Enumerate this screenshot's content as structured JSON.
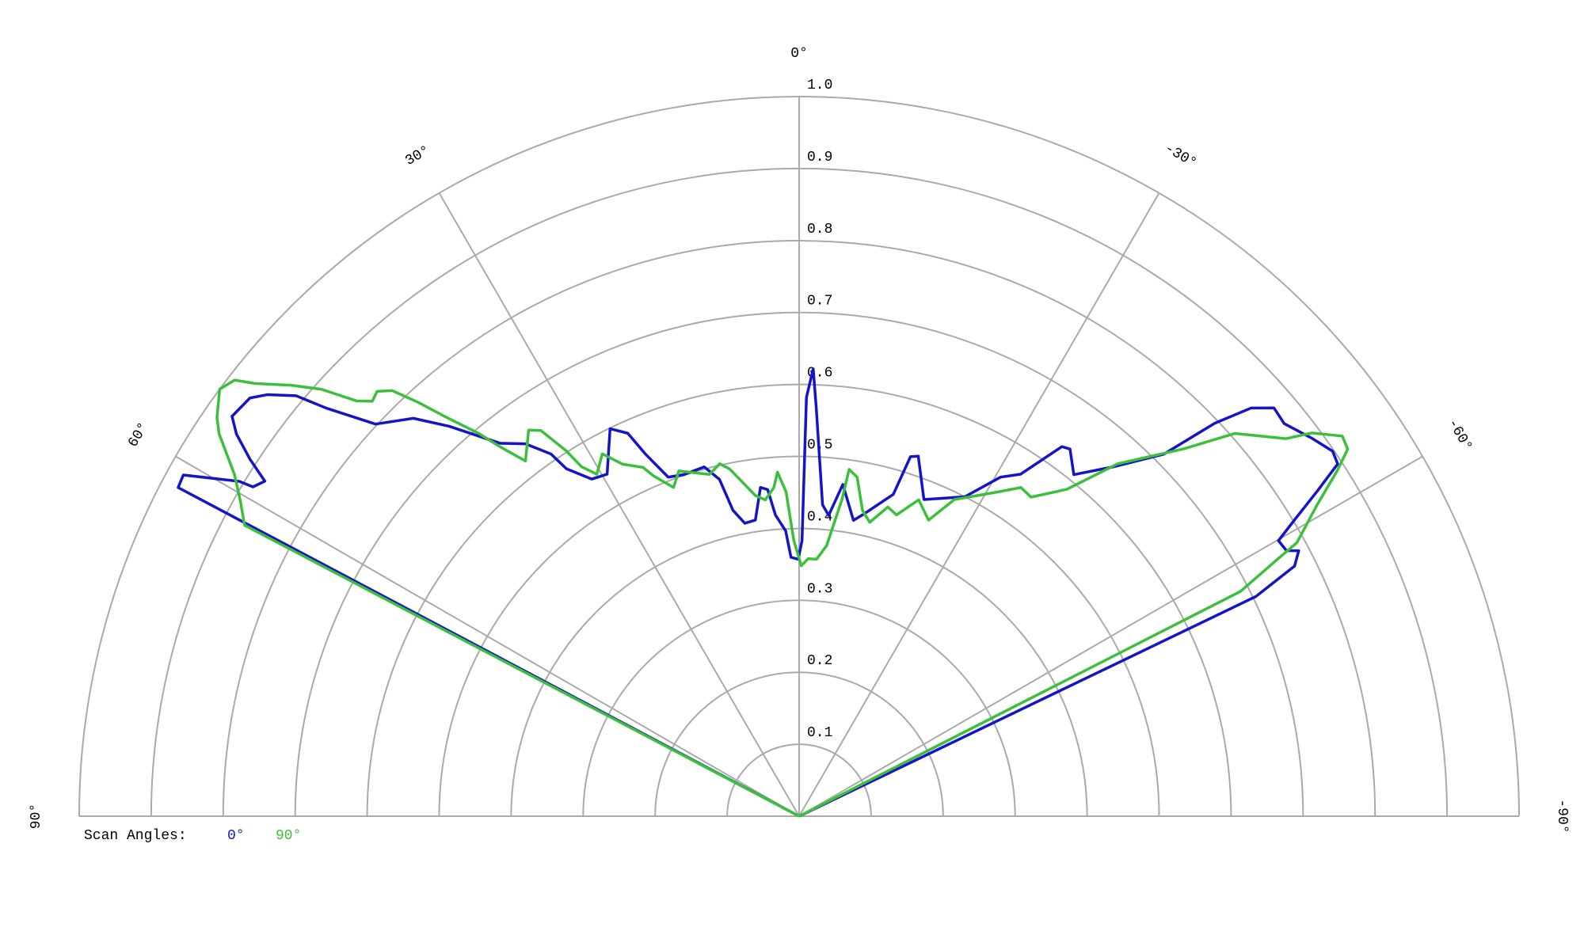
{
  "chart_data": {
    "type": "polar",
    "legend_title": "Scan Angles:",
    "rlim": [
      0,
      1
    ],
    "rticks": [
      0.1,
      0.2,
      0.3,
      0.4,
      0.5,
      0.6,
      0.7,
      0.8,
      0.9,
      {
        "value": 1,
        "label": "1.0"
      }
    ],
    "thetalim": [
      90,
      -90
    ],
    "thetaticks": [
      {
        "value": 90,
        "label": "90°"
      },
      {
        "value": 60,
        "label": "60°"
      },
      {
        "value": 30,
        "label": "30°"
      },
      {
        "value": 0,
        "label": "0°"
      },
      {
        "value": -30,
        "label": "-30°"
      },
      {
        "value": -60,
        "label": "-60°"
      },
      {
        "value": -90,
        "label": "-90°"
      }
    ],
    "grid": true,
    "series": [
      {
        "name": "0°",
        "color": "#1414c8",
        "theta": [
          62,
          62.1,
          61.0,
          59.1,
          58.9,
          57.9,
          56.96,
          55.8,
          54.8,
          52.7,
          51.6,
          50.1,
          49.2,
          47.2,
          44.1,
          41.9,
          38.7,
          36.3,
          34.4,
          33.8,
          31.6,
          29.3,
          26.0,
          24.1,
          23.0,
          21.1,
          18.6,
          15.2,
          13.3,
          12.2,
          10.5,
          8.4,
          6.7,
          5.5,
          4.5,
          2.7,
          1.8,
          0.2,
          -0.6,
          -1.0,
          -1.8,
          -2.4,
          -4.3,
          -5.6,
          -7.5,
          -10.4,
          -11.9,
          -16.3,
          -17.2,
          -18.3,
          -21.5,
          -27.4,
          -30.7,
          -32.9,
          -35.4,
          -36.4,
          -38.8,
          -41.9,
          -45.2,
          -46.6,
          -47.9,
          -49.3,
          -51.0,
          -53.6,
          -55.6,
          -56.8,
          -57.9,
          -59.1,
          -60.1,
          -61.4,
          -62.0,
          -63.2,
          -64.3,
          -64
        ],
        "values": [
          0,
          0.976,
          0.978,
          0.906,
          0.886,
          0.876,
          0.91,
          0.945,
          0.964,
          0.959,
          0.943,
          0.911,
          0.868,
          0.802,
          0.77,
          0.728,
          0.664,
          0.642,
          0.61,
          0.581,
          0.55,
          0.545,
          0.599,
          0.583,
          0.547,
          0.505,
          0.501,
          0.503,
          0.481,
          0.435,
          0.414,
          0.416,
          0.46,
          0.456,
          0.42,
          0.397,
          0.36,
          0.357,
          0.383,
          0.582,
          0.622,
          0.568,
          0.434,
          0.42,
          0.465,
          0.418,
          0.428,
          0.466,
          0.523,
          0.527,
          0.473,
          0.5,
          0.548,
          0.566,
          0.63,
          0.634,
          0.609,
          0.652,
          0.714,
          0.795,
          0.846,
          0.87,
          0.867,
          0.885,
          0.898,
          0.894,
          0.849,
          0.802,
          0.768,
          0.771,
          0.786,
          0.771,
          0.704,
          0
        ]
      },
      {
        "name": "90°",
        "color": "#3cc03c",
        "theta": [
          62.3,
          62.3,
          60.5,
          58.8,
          56.6,
          55.6,
          53.6,
          52.3,
          51.5,
          49.7,
          48.2,
          46.8,
          45.8,
          44.8,
          43.7,
          42.6,
          41.6,
          39.9,
          39.0,
          37.6,
          35.0,
          33.8,
          32.5,
          31.9,
          30.6,
          28.5,
          26.6,
          24.1,
          23.2,
          20.9,
          19.2,
          14.7,
          12.7,
          11.3,
          9.3,
          7.8,
          6.1,
          4.4,
          3.6,
          2.3,
          1.1,
          -0.5,
          -2.0,
          -3.9,
          -5.8,
          -7.7,
          -8.2,
          -9.7,
          -11.7,
          -13.5,
          -16.0,
          -17.9,
          -20.7,
          -23.6,
          -26.1,
          -31.2,
          -34.0,
          -36.0,
          -39.3,
          -42.1,
          -46.3,
          -48.7,
          -52.2,
          -53.2,
          -55.0,
          -56.2,
          -57.3,
          -59.0,
          -61.2,
          -61.8,
          -63.0,
          -63
        ],
        "values": [
          0,
          0.87,
          0.892,
          0.917,
          0.965,
          0.98,
          1.0,
          0.991,
          0.966,
          0.926,
          0.89,
          0.843,
          0.827,
          0.832,
          0.818,
          0.781,
          0.744,
          0.693,
          0.661,
          0.623,
          0.655,
          0.645,
          0.602,
          0.572,
          0.552,
          0.573,
          0.547,
          0.531,
          0.515,
          0.489,
          0.508,
          0.491,
          0.502,
          0.492,
          0.467,
          0.45,
          0.442,
          0.458,
          0.479,
          0.451,
          0.383,
          0.348,
          0.358,
          0.358,
          0.378,
          0.444,
          0.487,
          0.478,
          0.434,
          0.42,
          0.447,
          0.44,
          0.47,
          0.449,
          0.49,
          0.526,
          0.551,
          0.548,
          0.587,
          0.66,
          0.739,
          0.806,
          0.856,
          0.889,
          0.921,
          0.917,
          0.888,
          0.839,
          0.789,
          0.751,
          0.688,
          0
        ]
      }
    ]
  }
}
